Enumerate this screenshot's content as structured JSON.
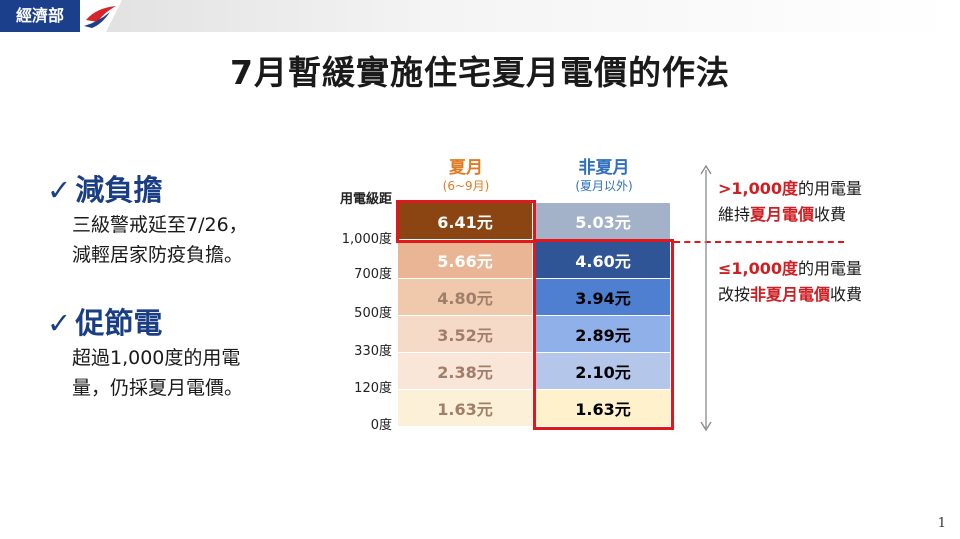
{
  "header": {
    "ministry": "經濟部"
  },
  "title": "7月暫緩實施住宅夏月電價的作法",
  "points": [
    {
      "title": "減負擔",
      "lines": [
        "三級警戒延至7/26，",
        "減輕居家防疫負擔。"
      ]
    },
    {
      "title": "促節電",
      "lines": [
        "超過1,000度的用電",
        "量，仍採夏月電價。"
      ]
    }
  ],
  "table": {
    "row_header": "用電級距",
    "columns": [
      {
        "title": "夏月",
        "subtitle": "(6~9月)"
      },
      {
        "title": "非夏月",
        "subtitle": "(夏月以外)"
      }
    ],
    "tier_labels": [
      "1,000度",
      "700度",
      "500度",
      "330度",
      "120度",
      "0度"
    ],
    "summer": [
      "6.41元",
      "5.66元",
      "4.80元",
      "3.52元",
      "2.38元",
      "1.63元"
    ],
    "non_summer": [
      "5.03元",
      "4.60元",
      "3.94元",
      "2.89元",
      "2.10元",
      "1.63元"
    ]
  },
  "notes": {
    "upper": {
      "prefix": ">1,000度",
      "mid1": "的用電量",
      "mid2": "維持",
      "highlight": "夏月電價",
      "suffix": "收費"
    },
    "lower": {
      "prefix": "≤1,000度",
      "mid1": "的用電量",
      "mid2": "改按",
      "highlight": "非夏月電價",
      "suffix": "收費"
    }
  },
  "colors": {
    "summer_cells": [
      "#8b4513",
      "#e9b594",
      "#f0c9ac",
      "#f6dac8",
      "#f9e6d9",
      "#fcf1d8"
    ],
    "non_summer_cells": [
      "#a3b1c9",
      "#2f5597",
      "#4e7fd0",
      "#8fb0e8",
      "#b4c7ea",
      "#fff1cc"
    ],
    "summer_text": [
      "#ffffff",
      "#ffffff",
      "#a07e6a",
      "#a07e6a",
      "#a07e6a",
      "#a07e6a"
    ],
    "non_summer_text": [
      "#ffffff",
      "#ffffff",
      "#000000",
      "#000000",
      "#000000",
      "#000000"
    ]
  },
  "page_number": "1"
}
